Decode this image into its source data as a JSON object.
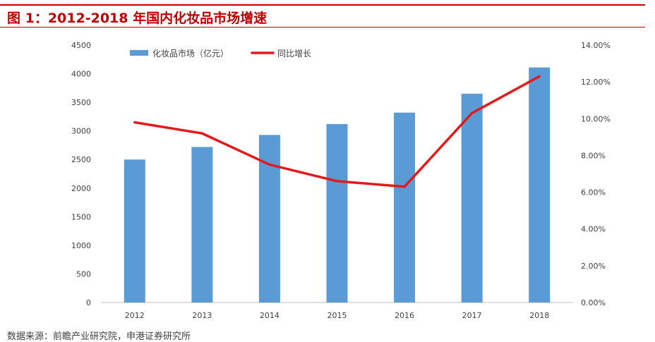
{
  "figure": {
    "title": "图 1：2012-2018 年国内化妆品市场增速",
    "source": "数据来源：前瞻产业研究院，申港证券研究所"
  },
  "colors": {
    "bar": "#5b9bd5",
    "line": "#e31a1c",
    "title": "#c00000",
    "axis": "#bfbfbf"
  },
  "chart_data": {
    "type": "bar",
    "categories": [
      "2012",
      "2013",
      "2014",
      "2015",
      "2016",
      "2017",
      "2018"
    ],
    "series": [
      {
        "name": "化妆品市场（亿元）",
        "type": "bar",
        "axis": "left",
        "values": [
          2500,
          2720,
          2930,
          3120,
          3320,
          3650,
          4110
        ]
      },
      {
        "name": "同比增长",
        "type": "line",
        "axis": "right",
        "values": [
          9.8,
          9.2,
          7.5,
          6.6,
          6.3,
          10.3,
          12.3
        ]
      }
    ],
    "y_left": {
      "min": 0,
      "max": 4500,
      "step": 500,
      "ticks": [
        "0",
        "500",
        "1000",
        "1500",
        "2000",
        "2500",
        "3000",
        "3500",
        "4000",
        "4500"
      ]
    },
    "y_right": {
      "min": 0,
      "max": 14,
      "step": 2,
      "ticks": [
        "0.00%",
        "2.00%",
        "4.00%",
        "6.00%",
        "8.00%",
        "10.00%",
        "12.00%",
        "14.00%"
      ]
    },
    "grid": false,
    "legend_position": "top-left"
  }
}
